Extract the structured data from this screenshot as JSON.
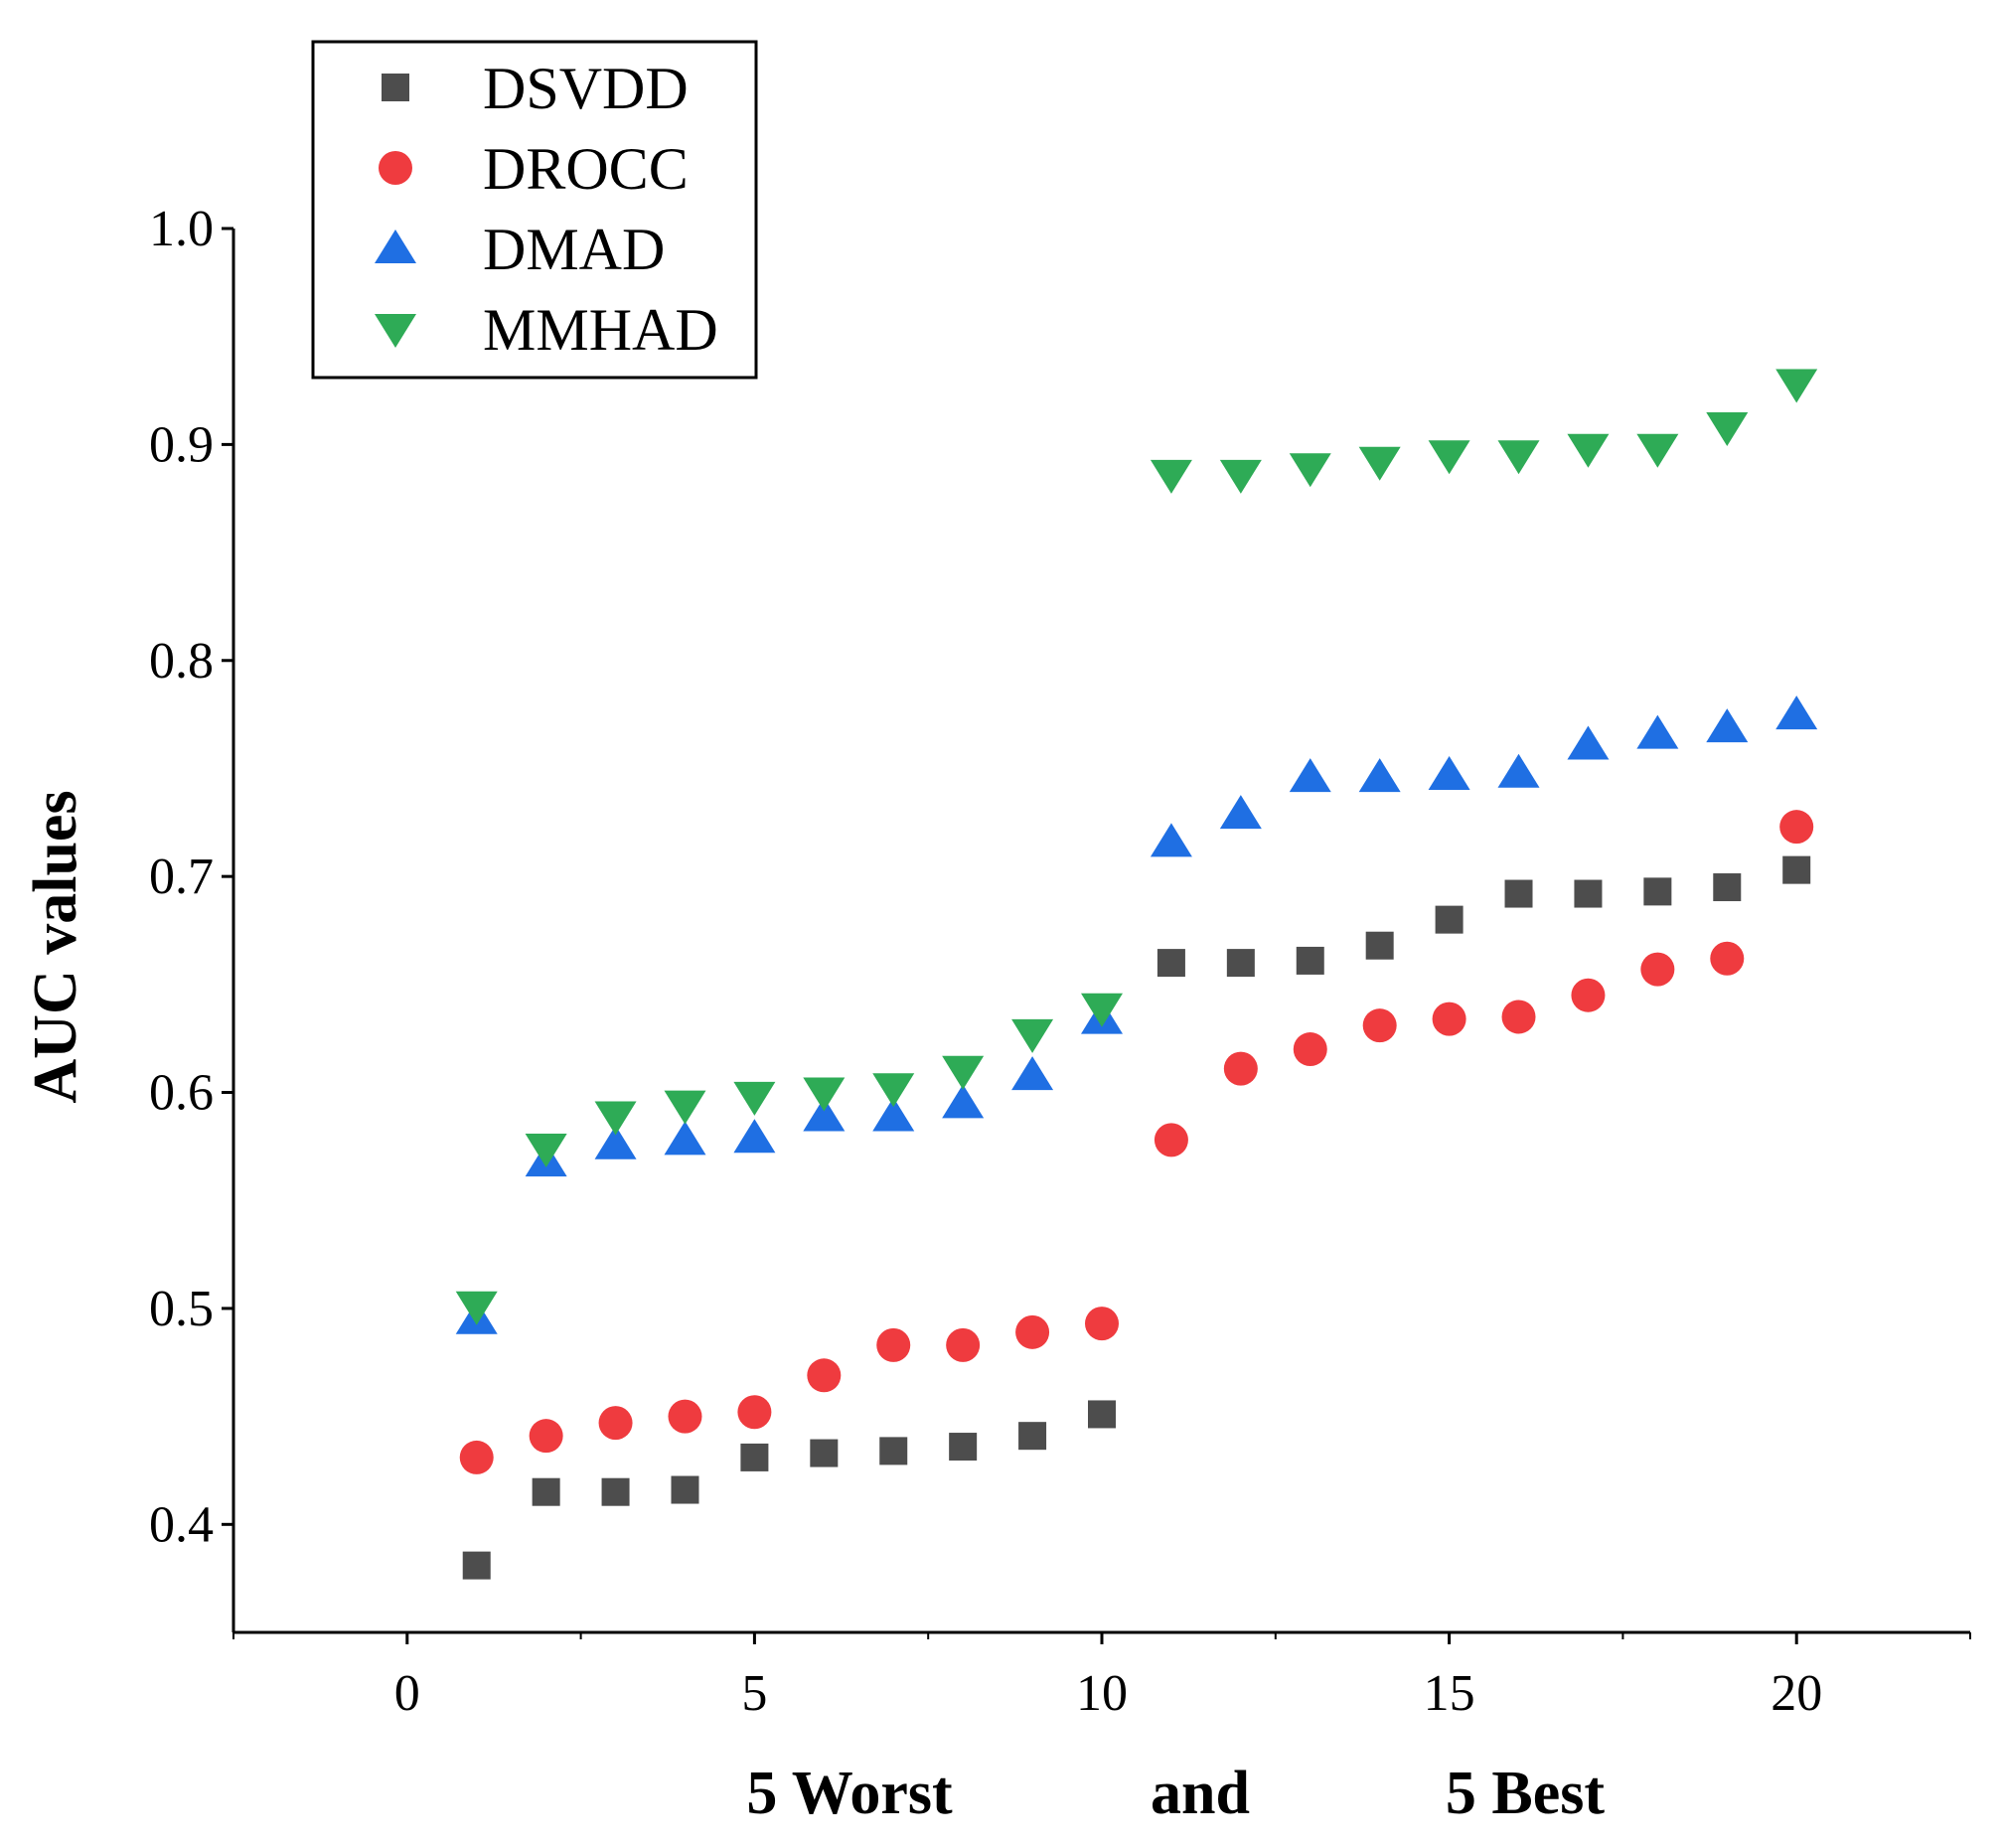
{
  "chart_data": {
    "type": "scatter",
    "title": "",
    "xlabel": {
      "parts": [
        "5 Worst",
        "and",
        "5 Best"
      ]
    },
    "ylabel": "AUC values",
    "xlim": [
      -2.5,
      22.5
    ],
    "ylim": [
      0.35,
      1.0
    ],
    "xticks": [
      0,
      5,
      10,
      15,
      20
    ],
    "yticks": [
      0.4,
      0.5,
      0.6,
      0.7,
      0.8,
      0.9,
      1.0
    ],
    "xtick_labels": [
      "0",
      "5",
      "10",
      "15",
      "20"
    ],
    "ytick_labels": [
      "0.4",
      "0.5",
      "0.6",
      "0.7",
      "0.8",
      "0.9",
      "1.0"
    ],
    "grid": false,
    "legend_position": "top-left",
    "x": [
      1,
      2,
      3,
      4,
      5,
      6,
      7,
      8,
      9,
      10,
      11,
      12,
      13,
      14,
      15,
      16,
      17,
      18,
      19,
      20
    ],
    "series": [
      {
        "name": "DSVDD",
        "marker": "square",
        "color": "#4d4d4d",
        "values": [
          0.381,
          0.415,
          0.415,
          0.416,
          0.431,
          0.433,
          0.434,
          0.436,
          0.441,
          0.451,
          0.66,
          0.66,
          0.661,
          0.668,
          0.68,
          0.692,
          0.692,
          0.693,
          0.695,
          0.703
        ]
      },
      {
        "name": "DROCC",
        "marker": "circle",
        "color": "#ef3b3f",
        "values": [
          0.431,
          0.441,
          0.447,
          0.45,
          0.452,
          0.469,
          0.483,
          0.483,
          0.489,
          0.493,
          0.578,
          0.611,
          0.62,
          0.631,
          0.634,
          0.635,
          0.645,
          0.657,
          0.662,
          0.723
        ]
      },
      {
        "name": "DMAD",
        "marker": "triangle-up",
        "color": "#1f6fe3",
        "values": [
          0.495,
          0.568,
          0.576,
          0.578,
          0.579,
          0.589,
          0.589,
          0.595,
          0.608,
          0.634,
          0.716,
          0.729,
          0.746,
          0.746,
          0.747,
          0.748,
          0.761,
          0.766,
          0.769,
          0.775
        ]
      },
      {
        "name": "MMHAD",
        "marker": "triangle-down",
        "color": "#2eab56",
        "values": [
          0.501,
          0.574,
          0.589,
          0.594,
          0.598,
          0.6,
          0.602,
          0.61,
          0.627,
          0.639,
          0.886,
          0.886,
          0.889,
          0.892,
          0.895,
          0.895,
          0.898,
          0.898,
          0.908,
          0.928
        ]
      }
    ]
  }
}
